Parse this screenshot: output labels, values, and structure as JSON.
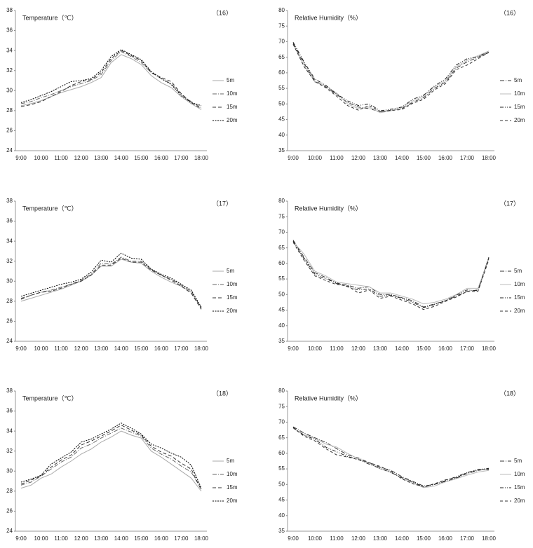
{
  "chart_data": [
    {
      "type": "line",
      "title": "Temperature（℃）",
      "label": "（16）",
      "categories": [
        "9:00",
        null,
        "10:00",
        null,
        "11:00",
        null,
        "12:00",
        null,
        "13:00",
        null,
        "14:00",
        null,
        "15:00",
        null,
        "16:00",
        null,
        "17:00",
        null,
        "18:00"
      ],
      "ylim": [
        24,
        38
      ],
      "yticks": [
        24,
        26,
        28,
        30,
        32,
        34,
        36,
        38
      ],
      "series": [
        {
          "name": "5m",
          "color": "#aaaaaa",
          "dash": "none",
          "values": [
            28.5,
            28.7,
            29.0,
            29.4,
            29.8,
            30.1,
            30.4,
            30.8,
            31.3,
            32.8,
            33.6,
            33.2,
            32.6,
            31.5,
            30.8,
            30.3,
            29.4,
            28.7,
            28.1
          ]
        },
        {
          "name": "10m",
          "color": "#666666",
          "dash": "6 2 1 2",
          "values": [
            28.7,
            28.9,
            29.3,
            29.6,
            30.0,
            30.4,
            30.7,
            31.0,
            31.6,
            33.0,
            33.9,
            33.4,
            32.8,
            31.8,
            31.2,
            30.7,
            29.6,
            28.9,
            28.3
          ]
        },
        {
          "name": "15m",
          "color": "#333333",
          "dash": "5 3",
          "values": [
            28.4,
            28.6,
            28.9,
            29.4,
            29.9,
            30.5,
            30.9,
            31.1,
            31.8,
            33.2,
            34.0,
            33.5,
            33.0,
            31.8,
            31.3,
            30.9,
            29.7,
            28.8,
            28.2
          ]
        },
        {
          "name": "20m",
          "color": "#000000",
          "dash": "2 1.5",
          "values": [
            28.8,
            29.1,
            29.5,
            29.9,
            30.4,
            30.9,
            31.0,
            31.2,
            32.0,
            33.4,
            34.1,
            33.6,
            33.1,
            31.9,
            31.2,
            30.6,
            29.5,
            28.8,
            28.5
          ]
        }
      ]
    },
    {
      "type": "line",
      "title": "Relative Humidity（%）",
      "label": "（16）",
      "categories": [
        "9:00",
        null,
        "10:00",
        null,
        "11:00",
        null,
        "12:00",
        null,
        "13:00",
        null,
        "14:00",
        null,
        "15:00",
        null,
        "16:00",
        null,
        "17:00",
        null,
        "18:00"
      ],
      "ylim": [
        35,
        80
      ],
      "yticks": [
        35,
        40,
        45,
        50,
        55,
        60,
        65,
        70,
        75,
        80
      ],
      "series": [
        {
          "name": "5m",
          "color": "#333333",
          "dash": "6 2 1 2",
          "values": [
            69.5,
            63,
            57.5,
            55.5,
            53,
            50.5,
            49,
            48.5,
            47.5,
            48,
            48.5,
            50.5,
            52,
            55,
            57,
            61.5,
            63.5,
            65,
            66.5
          ]
        },
        {
          "name": "10m",
          "color": "#bbbbbb",
          "dash": "none",
          "values": [
            69,
            62.5,
            57,
            55.8,
            53.5,
            50,
            48.5,
            49,
            47.2,
            47.8,
            48.8,
            51,
            52.5,
            55.5,
            57.5,
            62,
            64,
            65.5,
            67
          ]
        },
        {
          "name": "15m",
          "color": "#222222",
          "dash": "5 2 1 2 1 2",
          "values": [
            69.8,
            63.5,
            58,
            56,
            53.2,
            51,
            49.5,
            50,
            47.8,
            48.3,
            49,
            51.5,
            52.8,
            55.8,
            58,
            62.5,
            64.5,
            65.2,
            66.8
          ]
        },
        {
          "name": "20m",
          "color": "#333333",
          "dash": "4 3",
          "values": [
            69.2,
            62,
            57.2,
            55.2,
            52.5,
            49.5,
            48,
            49.5,
            47.5,
            47.9,
            48.2,
            50.2,
            51.5,
            54.5,
            56.5,
            61,
            62.5,
            64.5,
            66.6
          ]
        }
      ]
    },
    {
      "type": "line",
      "title": "Temperature（℃）",
      "label": "（17）",
      "categories": [
        "9:00",
        null,
        "10:00",
        null,
        "11:00",
        null,
        "12:00",
        null,
        "13:00",
        null,
        "14:00",
        null,
        "15:00",
        null,
        "16:00",
        null,
        "17:00",
        null,
        "18:00"
      ],
      "ylim": [
        24,
        38
      ],
      "yticks": [
        24,
        26,
        28,
        30,
        32,
        34,
        36,
        38
      ],
      "series": [
        {
          "name": "5m",
          "color": "#aaaaaa",
          "dash": "none",
          "values": [
            28.0,
            28.3,
            28.6,
            28.9,
            29.2,
            29.6,
            30.0,
            30.6,
            31.5,
            31.5,
            32.2,
            31.9,
            31.8,
            31.0,
            30.4,
            29.9,
            29.5,
            28.9,
            27.4
          ]
        },
        {
          "name": "10m",
          "color": "#666666",
          "dash": "6 2 1 2",
          "values": [
            28.3,
            28.6,
            28.9,
            29.1,
            29.4,
            29.7,
            30.1,
            30.7,
            31.8,
            31.7,
            32.4,
            32.0,
            32.0,
            31.2,
            30.6,
            30.2,
            29.6,
            29.0,
            27.3
          ]
        },
        {
          "name": "15m",
          "color": "#333333",
          "dash": "5 3",
          "values": [
            28.2,
            28.6,
            28.9,
            29.0,
            29.3,
            29.7,
            30.0,
            30.6,
            31.6,
            31.6,
            32.3,
            31.9,
            31.9,
            31.1,
            30.6,
            30.1,
            29.5,
            28.8,
            27.2
          ]
        },
        {
          "name": "20m",
          "color": "#000000",
          "dash": "2 1.5",
          "values": [
            28.5,
            28.8,
            29.1,
            29.4,
            29.7,
            29.9,
            30.2,
            30.9,
            32.1,
            31.9,
            32.8,
            32.3,
            32.2,
            31.2,
            30.7,
            30.3,
            29.7,
            29.1,
            27.4
          ]
        }
      ]
    },
    {
      "type": "line",
      "title": "Relative Humidity（%）",
      "label": "（17）",
      "categories": [
        "9:00",
        null,
        "10:00",
        null,
        "11:00",
        null,
        "12:00",
        null,
        "13:00",
        null,
        "14:00",
        null,
        "15:00",
        null,
        "16:00",
        null,
        "17:00",
        null,
        "18:00"
      ],
      "ylim": [
        35,
        80
      ],
      "yticks": [
        35,
        40,
        45,
        50,
        55,
        60,
        65,
        70,
        75,
        80
      ],
      "series": [
        {
          "name": "5m",
          "color": "#333333",
          "dash": "6 2 1 2",
          "values": [
            67.5,
            62,
            57,
            55.5,
            53.5,
            53,
            52,
            52.5,
            50,
            50,
            49,
            48,
            46,
            47,
            48,
            49.5,
            51,
            51.5,
            62
          ]
        },
        {
          "name": "10m",
          "color": "#bbbbbb",
          "dash": "none",
          "values": [
            67,
            63,
            57.5,
            56,
            54,
            53.5,
            53,
            52.5,
            50.5,
            50.5,
            49.5,
            48.5,
            47,
            47.5,
            48.5,
            50,
            52,
            52,
            61.5
          ]
        },
        {
          "name": "15m",
          "color": "#222222",
          "dash": "5 2 1 2 1 2",
          "values": [
            67.2,
            61.5,
            56.5,
            55,
            53.8,
            52.5,
            51.5,
            51.8,
            49.5,
            49.8,
            48.8,
            47.5,
            45.8,
            46.8,
            48,
            49.8,
            51.5,
            51.2,
            61.8
          ]
        },
        {
          "name": "20m",
          "color": "#333333",
          "dash": "4 3",
          "values": [
            66.8,
            61,
            56,
            54.5,
            53.2,
            52.8,
            50.5,
            51.5,
            48.8,
            49.5,
            48.2,
            47,
            45.2,
            46.2,
            47.8,
            49.2,
            51,
            51,
            61.2
          ]
        }
      ]
    },
    {
      "type": "line",
      "title": "Temperature（℃）",
      "label": "（18）",
      "categories": [
        "9:00",
        null,
        "10:00",
        null,
        "11:00",
        null,
        "12:00",
        null,
        "13:00",
        null,
        "14:00",
        null,
        "15:00",
        null,
        "16:00",
        null,
        "17:00",
        null,
        "18:00"
      ],
      "ylim": [
        24,
        38
      ],
      "yticks": [
        24,
        26,
        28,
        30,
        32,
        34,
        36,
        38
      ],
      "series": [
        {
          "name": "5m",
          "color": "#aaaaaa",
          "dash": "none",
          "values": [
            28.3,
            28.6,
            29.3,
            29.7,
            30.4,
            31.0,
            31.7,
            32.2,
            32.9,
            33.4,
            34.0,
            33.6,
            33.3,
            32.0,
            31.4,
            30.7,
            30.0,
            29.3,
            28.0
          ]
        },
        {
          "name": "10m",
          "color": "#666666",
          "dash": "6 2 1 2",
          "values": [
            28.6,
            28.9,
            29.5,
            30.2,
            30.9,
            31.4,
            32.3,
            32.7,
            33.3,
            33.8,
            34.3,
            33.9,
            33.5,
            32.3,
            31.7,
            31.2,
            30.5,
            29.9,
            28.2
          ]
        },
        {
          "name": "15m",
          "color": "#333333",
          "dash": "5 3",
          "values": [
            28.7,
            29.1,
            29.5,
            30.4,
            31.1,
            31.6,
            32.6,
            33.0,
            33.5,
            34.0,
            34.6,
            34.1,
            33.6,
            32.5,
            31.9,
            31.5,
            30.8,
            30.2,
            28.1
          ]
        },
        {
          "name": "20m",
          "color": "#000000",
          "dash": "2 1.5",
          "values": [
            28.9,
            29.2,
            29.6,
            30.7,
            31.3,
            31.9,
            32.9,
            33.2,
            33.7,
            34.2,
            34.8,
            34.3,
            33.7,
            32.7,
            32.3,
            31.8,
            31.4,
            30.6,
            28.3
          ]
        }
      ]
    },
    {
      "type": "line",
      "title": "Relative Humidity（%）",
      "label": "（18）",
      "categories": [
        "9:00",
        null,
        "10:00",
        null,
        "11:00",
        null,
        "12:00",
        null,
        "13:00",
        null,
        "14:00",
        null,
        "15:00",
        null,
        "16:00",
        null,
        "17:00",
        null,
        "18:00"
      ],
      "ylim": [
        35,
        80
      ],
      "yticks": [
        35,
        40,
        45,
        50,
        55,
        60,
        65,
        70,
        75,
        80
      ],
      "series": [
        {
          "name": "5m",
          "color": "#333333",
          "dash": "6 2 1 2",
          "values": [
            68.5,
            66.5,
            65,
            63.5,
            61.5,
            59.5,
            58.5,
            57,
            55.5,
            54.5,
            52.5,
            51,
            49.5,
            50,
            51,
            52,
            53.5,
            54.5,
            55
          ]
        },
        {
          "name": "10m",
          "color": "#bbbbbb",
          "dash": "none",
          "values": [
            68,
            66,
            64.8,
            63,
            62,
            60,
            58.2,
            56.8,
            55,
            54,
            52,
            50.5,
            49,
            49.5,
            50.8,
            51.8,
            53,
            54,
            54.5
          ]
        },
        {
          "name": "15m",
          "color": "#222222",
          "dash": "5 2 1 2 1 2",
          "values": [
            68.3,
            65.8,
            64.5,
            62,
            60.5,
            59,
            58,
            56.5,
            55.2,
            53.8,
            52.2,
            50.8,
            49.2,
            50,
            51.2,
            52.5,
            53.8,
            54.8,
            55.2
          ]
        },
        {
          "name": "20m",
          "color": "#333333",
          "dash": "4 3",
          "values": [
            68.2,
            65.5,
            64,
            61.5,
            59.5,
            58.8,
            58,
            57,
            55.8,
            54.2,
            51.8,
            50.2,
            49.3,
            50.2,
            51.5,
            52.2,
            53.8,
            54.6,
            54.8
          ]
        }
      ]
    }
  ]
}
